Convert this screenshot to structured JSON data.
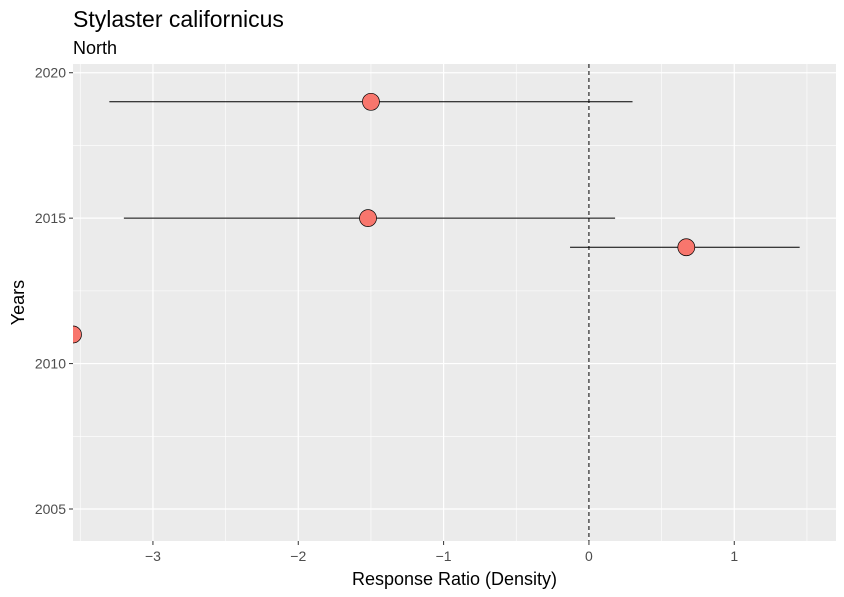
{
  "chart_data": {
    "type": "scatter",
    "title": "Stylaster californicus",
    "subtitle": "North",
    "xlabel": "Response Ratio (Density)",
    "ylabel": "Years",
    "xlim": [
      -3.55,
      1.7
    ],
    "ylim": [
      2003.9,
      2020.3
    ],
    "x_ticks": [
      -3,
      -2,
      -1,
      0,
      1
    ],
    "y_ticks": [
      2005,
      2010,
      2015,
      2020
    ],
    "reference_line": {
      "x": 0,
      "style": "dashed"
    },
    "grid": true,
    "point_color": "#F8766D",
    "points": [
      {
        "year": 2019,
        "value": -1.5,
        "ci_low": -3.3,
        "ci_high": 0.3
      },
      {
        "year": 2015,
        "value": -1.52,
        "ci_low": -3.2,
        "ci_high": 0.18
      },
      {
        "year": 2014,
        "value": 0.67,
        "ci_low": -0.13,
        "ci_high": 1.45
      },
      {
        "year": 2011,
        "value": -3.55,
        "ci_low": null,
        "ci_high": null
      }
    ]
  }
}
